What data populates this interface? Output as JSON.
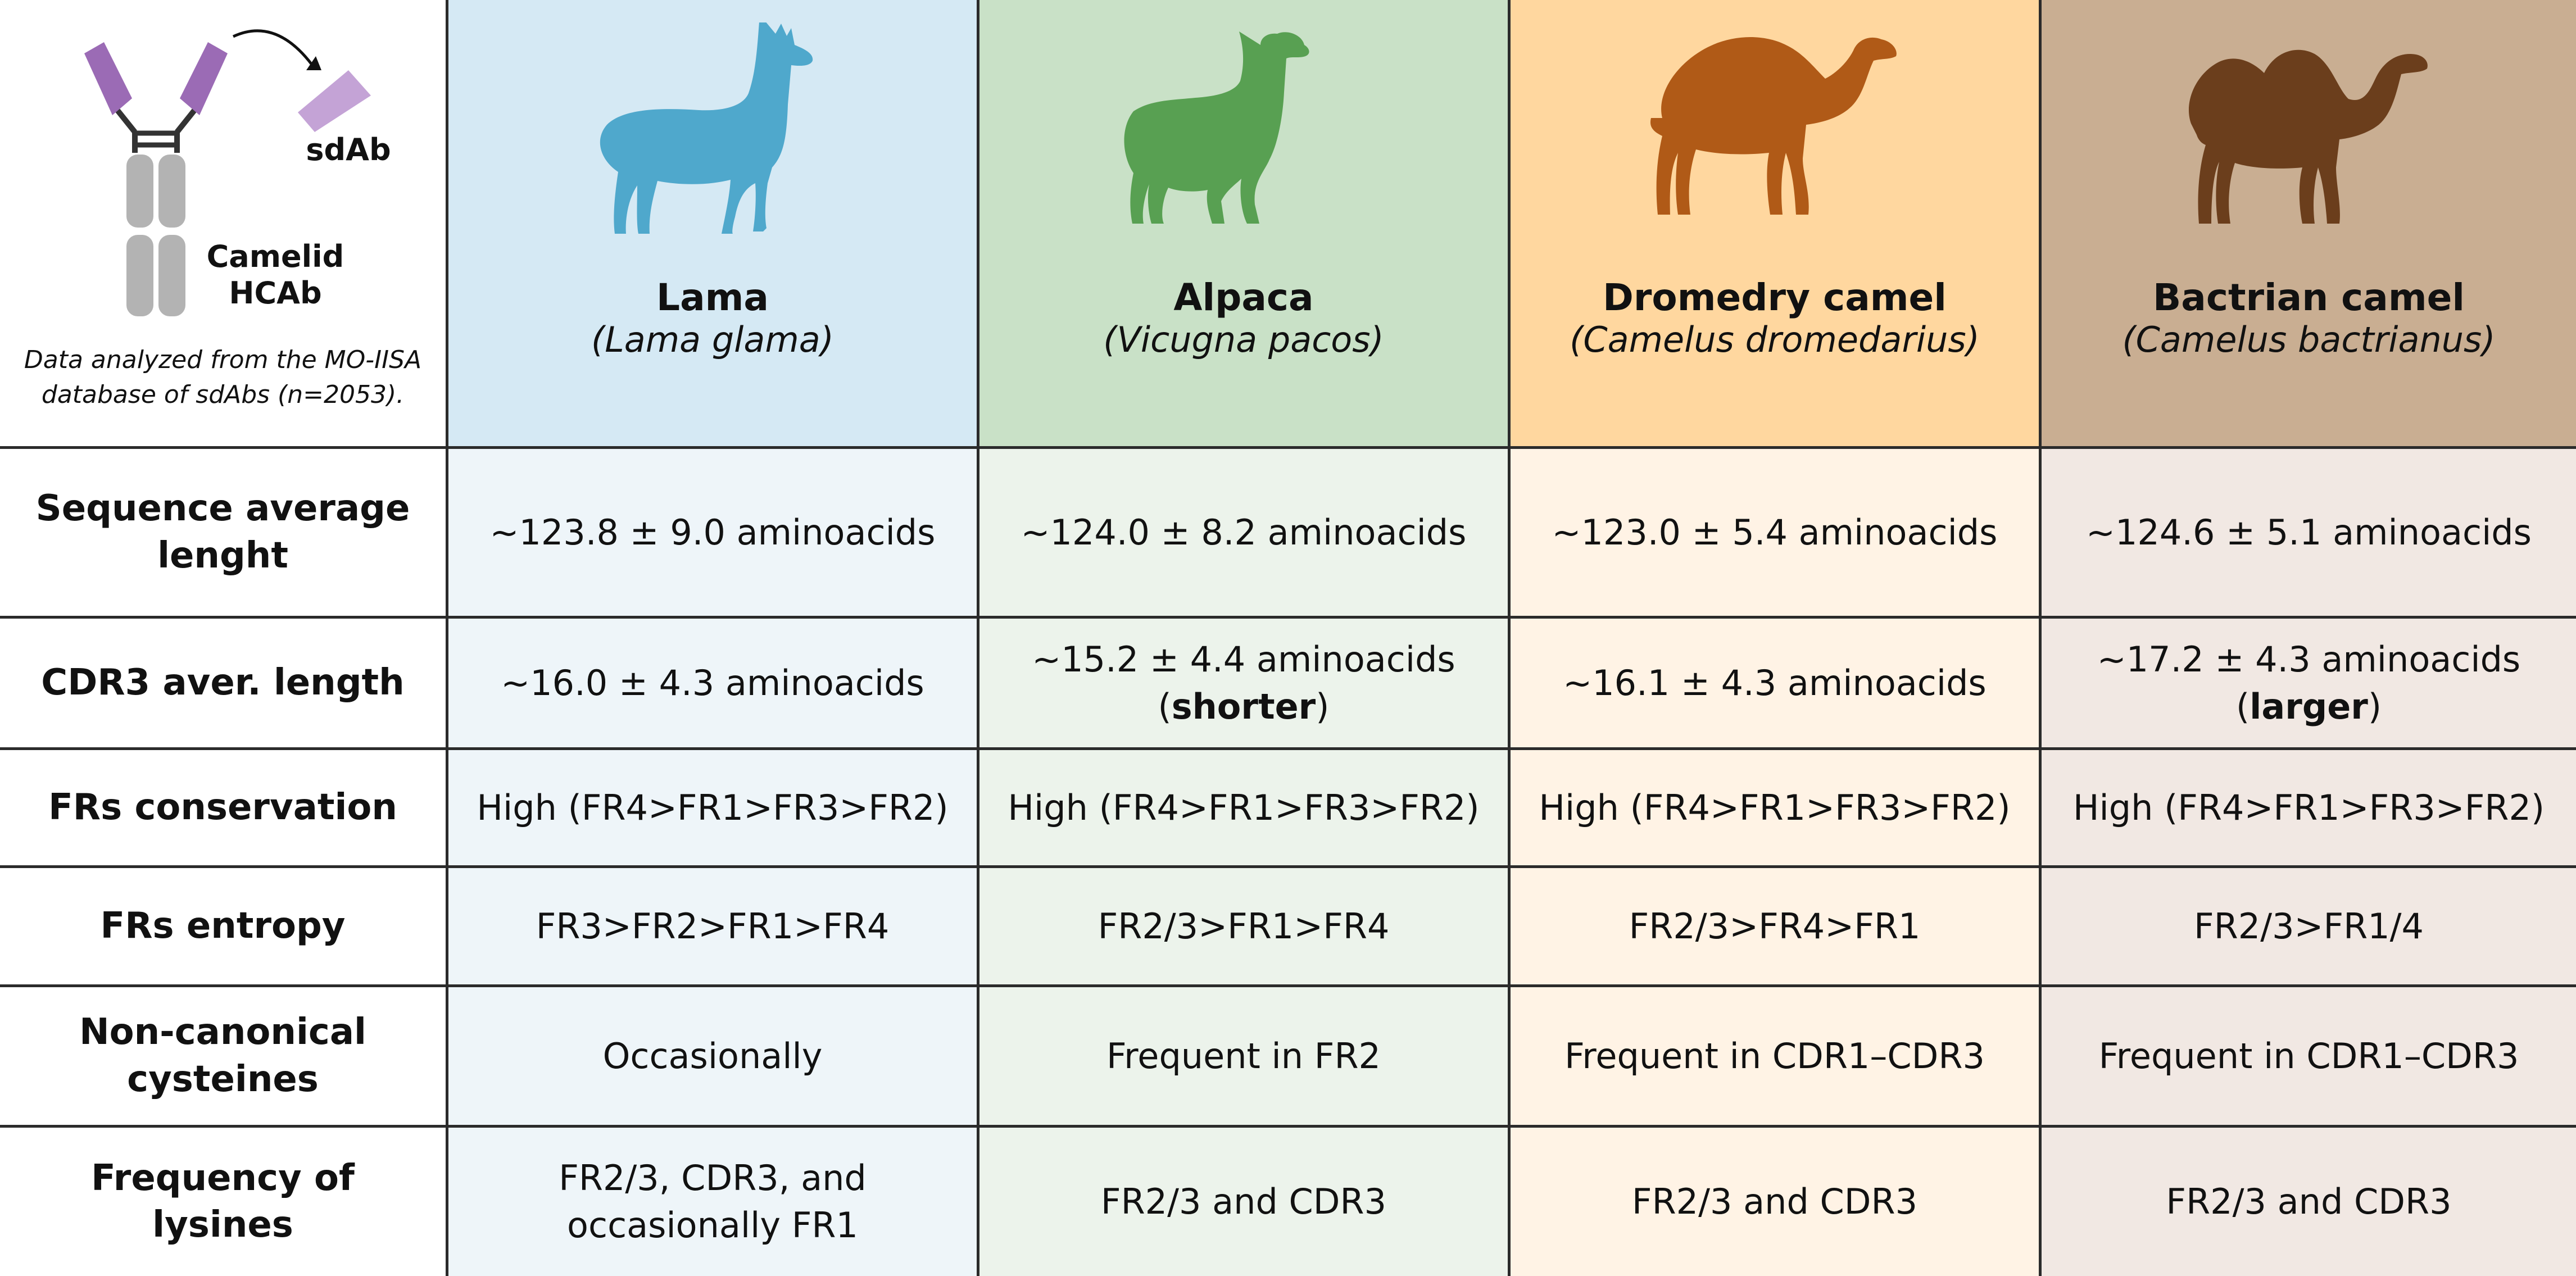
{
  "legend": {
    "sdab_label": "sdAb",
    "hcab_label_line1": "Camelid",
    "hcab_label_line2": "HCAb",
    "note": "Data analyzed from the MO-IISA database of sdAbs (n=2053)."
  },
  "animals": [
    {
      "name": "Lama",
      "latin": "(Lama glama)",
      "silhouette": "llama-icon",
      "color": "#4fa8cc"
    },
    {
      "name": "Alpaca",
      "latin": "(Vicugna pacos)",
      "silhouette": "alpaca-icon",
      "color": "#58a052"
    },
    {
      "name": "Dromedry camel",
      "latin": "(Camelus dromedarius)",
      "silhouette": "dromedary-camel-icon",
      "color": "#b05a17"
    },
    {
      "name": "Bactrian camel",
      "latin": "(Camelus bactrianus)",
      "silhouette": "bactrian-camel-icon",
      "color": "#6b3e1c"
    }
  ],
  "rows": [
    {
      "label": "Sequence average lenght",
      "values": [
        "~123.8 ± 9.0 aminoacids",
        "~124.0 ± 8.2 aminoacids",
        "~123.0 ± 5.4 aminoacids",
        "~124.6 ± 5.1 aminoacids"
      ]
    },
    {
      "label": "CDR3 aver. length",
      "values": [
        "~16.0 ± 4.3 aminoacids",
        "~15.2 ± 4.4 aminoacids",
        "~16.1 ± 4.3 aminoacids",
        "~17.2 ± 4.3 aminoacids"
      ],
      "notes": [
        "",
        "shorter",
        "",
        "larger"
      ]
    },
    {
      "label": "FRs conservation",
      "values": [
        "High (FR4>FR1>FR3>FR2)",
        "High (FR4>FR1>FR3>FR2)",
        "High (FR4>FR1>FR3>FR2)",
        "High (FR4>FR1>FR3>FR2)"
      ]
    },
    {
      "label": "FRs entropy",
      "values": [
        "FR3>FR2>FR1>FR4",
        "FR2/3>FR1>FR4",
        "FR2/3>FR4>FR1",
        "FR2/3>FR1/4"
      ]
    },
    {
      "label": "Non-canonical cysteines",
      "values": [
        "Occasionally",
        "Frequent in FR2",
        "Frequent in CDR1–CDR3",
        "Frequent in CDR1–CDR3"
      ]
    },
    {
      "label": "Frequency of lysines",
      "values": [
        "FR2/3, CDR3, and occasionally FR1",
        "FR2/3 and CDR3",
        "FR2/3 and CDR3",
        "FR2/3 and CDR3"
      ]
    }
  ]
}
